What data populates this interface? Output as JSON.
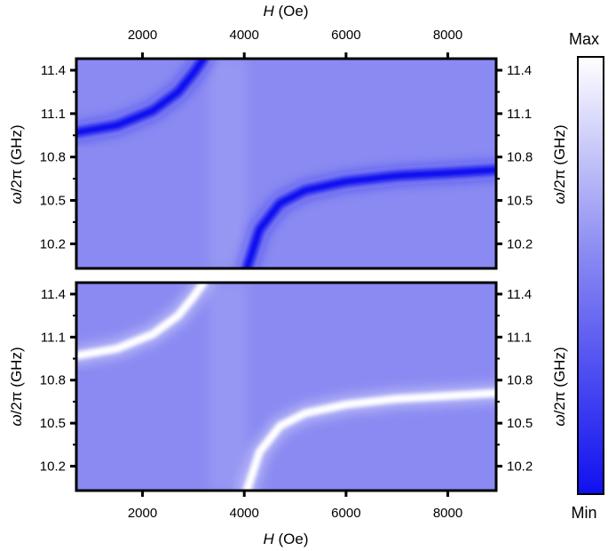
{
  "chart_data": {
    "type": "heatmap",
    "x_title_italic": "H",
    "x_title_unit": " (Oe)",
    "y_title_italic": "ω",
    "y_title_rest": "/2π (GHz)",
    "x_ticks": [
      2000,
      4000,
      6000,
      8000
    ],
    "y_ticks": [
      10.2,
      10.5,
      10.8,
      11.1,
      11.4
    ],
    "xlim": [
      700,
      8950
    ],
    "ylim": [
      10.03,
      11.48
    ],
    "colorbar": {
      "max_label": "Max",
      "min_label": "Min",
      "min_color": "#1010f0",
      "mid_color": "#8a8af2",
      "max_color": "#ffffff"
    },
    "panels": [
      {
        "name": "top",
        "background_level": 0.55,
        "branches": [
          {
            "x": [
              700,
              1500,
              2200,
              2700,
              3000,
              3200
            ],
            "y": [
              10.97,
              11.02,
              11.12,
              11.25,
              11.38,
              11.48
            ]
          },
          {
            "x": [
              4050,
              4300,
              4700,
              5200,
              6000,
              7000,
              8000,
              8950
            ],
            "y": [
              10.03,
              10.3,
              10.48,
              10.57,
              10.63,
              10.67,
              10.69,
              10.71
            ]
          }
        ],
        "branch_level": 0.0
      },
      {
        "name": "bottom",
        "background_level": 0.55,
        "branches": [
          {
            "x": [
              700,
              1500,
              2200,
              2700,
              3000,
              3200
            ],
            "y": [
              10.97,
              11.02,
              11.12,
              11.25,
              11.38,
              11.48
            ]
          },
          {
            "x": [
              4050,
              4300,
              4700,
              5200,
              6000,
              7000,
              8000,
              8950
            ],
            "y": [
              10.03,
              10.3,
              10.48,
              10.57,
              10.63,
              10.67,
              10.69,
              10.71
            ]
          }
        ],
        "branch_level": 1.0
      }
    ]
  }
}
